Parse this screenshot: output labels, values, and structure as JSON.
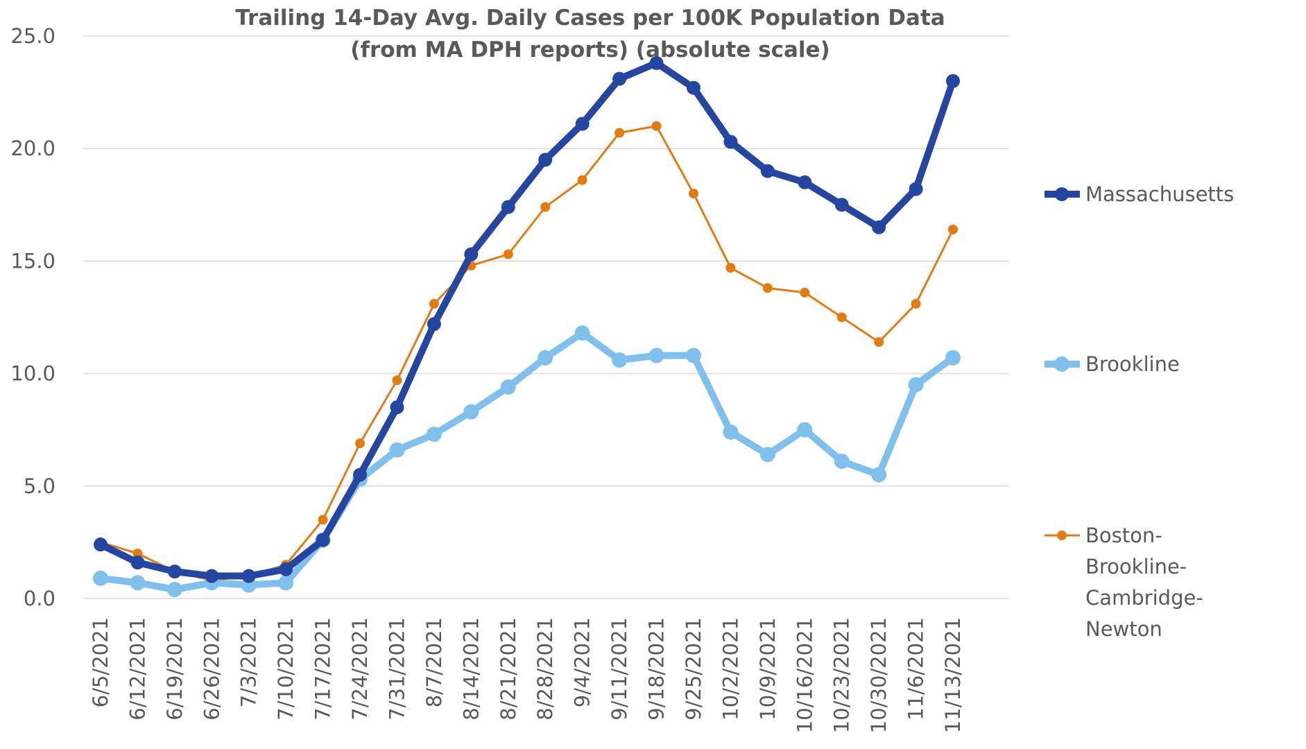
{
  "chart_data": {
    "type": "line",
    "title": [
      "Trailing 14-Day Avg. Daily Cases per 100K Population Data",
      "(from MA DPH reports) (absolute scale)"
    ],
    "categories": [
      "6/5/2021",
      "6/12/2021",
      "6/19/2021",
      "6/26/2021",
      "7/3/2021",
      "7/10/2021",
      "7/17/2021",
      "7/24/2021",
      "7/31/2021",
      "8/7/2021",
      "8/14/2021",
      "8/21/2021",
      "8/28/2021",
      "9/4/2021",
      "9/11/2021",
      "9/18/2021",
      "9/25/2021",
      "10/2/2021",
      "10/9/2021",
      "10/16/2021",
      "10/23/2021",
      "10/30/2021",
      "11/6/2021",
      "11/13/2021"
    ],
    "series": [
      {
        "name": "Massachusetts",
        "color": "#2446a0",
        "values": [
          2.4,
          1.6,
          1.2,
          1.0,
          1.0,
          1.3,
          2.6,
          5.5,
          8.5,
          12.2,
          15.3,
          17.4,
          19.5,
          21.1,
          23.1,
          23.8,
          22.7,
          20.3,
          19.0,
          18.5,
          17.5,
          16.5,
          18.2,
          23.0
        ]
      },
      {
        "name": "Brookline",
        "color": "#7fc0ec",
        "values": [
          0.9,
          0.7,
          0.4,
          0.7,
          0.6,
          0.7,
          2.6,
          5.3,
          6.6,
          7.3,
          8.3,
          9.4,
          10.7,
          11.8,
          10.6,
          10.8,
          10.8,
          7.4,
          6.4,
          7.5,
          6.1,
          5.5,
          9.5,
          10.7
        ]
      },
      {
        "name": "Boston-Brookline-Cambridge-Newton",
        "color": "#e27c12",
        "values": [
          2.5,
          2.0,
          1.2,
          0.8,
          1.0,
          1.5,
          3.5,
          6.9,
          9.7,
          13.1,
          14.8,
          15.3,
          17.4,
          18.6,
          20.7,
          21.0,
          18.0,
          14.7,
          13.8,
          13.6,
          12.5,
          11.4,
          13.1,
          16.4
        ]
      }
    ],
    "ylim": [
      0,
      25
    ],
    "yticks": [
      {
        "value": 0,
        "label": "0.0"
      },
      {
        "value": 5,
        "label": "5.0"
      },
      {
        "value": 10,
        "label": "10.0"
      },
      {
        "value": 15,
        "label": "15.0"
      },
      {
        "value": 20,
        "label": "20.0"
      },
      {
        "value": 25,
        "label": "25.0"
      }
    ],
    "grid": true,
    "legend": "right"
  }
}
